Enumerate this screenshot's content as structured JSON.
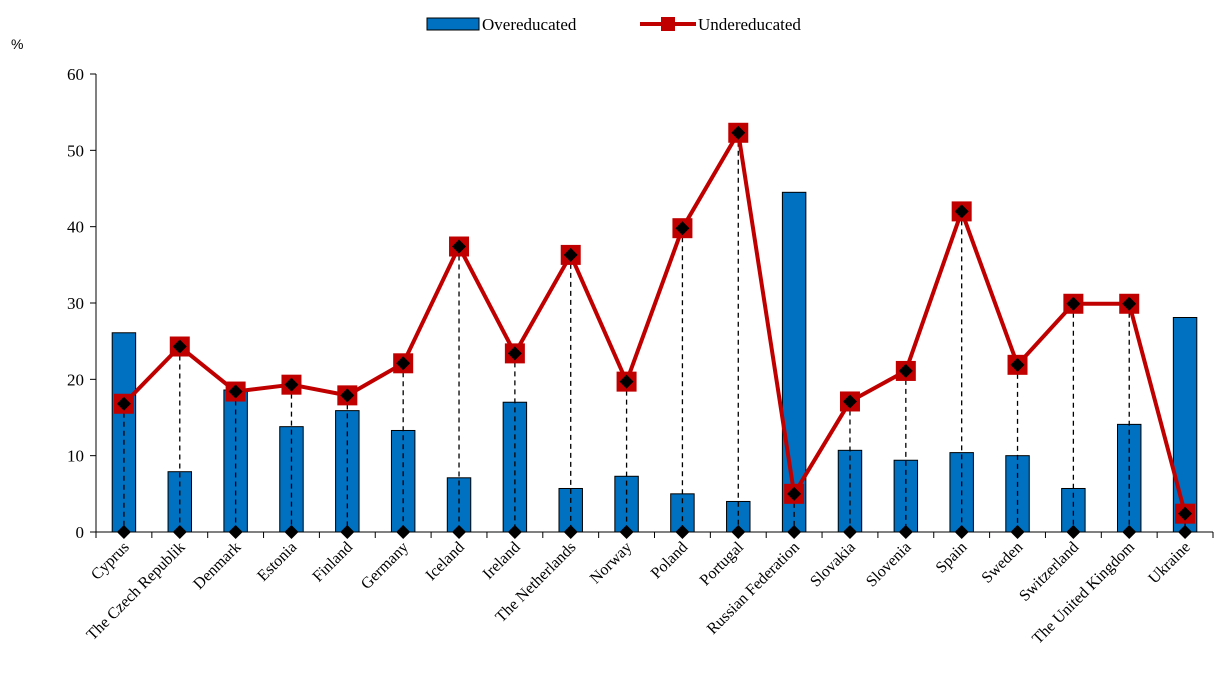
{
  "chart_data": {
    "type": "bar",
    "unit_label": "%",
    "categories": [
      "Cyprus",
      "The Czech Republik",
      "Denmark",
      "Estonia",
      "Finland",
      "Germany",
      "Iceland",
      "Ireland",
      "The Netherlands",
      "Norway",
      "Poland",
      "Portugal",
      "Russian Federation",
      "Slovakia",
      "Slovenia",
      "Spain",
      "Sweden",
      "Switzerland",
      "The United Kingdom",
      "Ukraine"
    ],
    "series": [
      {
        "name": "Overeducated",
        "kind": "bar",
        "color": "#0070C0",
        "values": [
          26.1,
          7.9,
          18.6,
          13.8,
          15.9,
          13.3,
          7.1,
          17.0,
          5.7,
          7.3,
          5.0,
          4.0,
          44.5,
          10.7,
          9.4,
          10.4,
          10.0,
          5.7,
          14.1,
          28.1
        ]
      },
      {
        "name": "Undereducated",
        "kind": "line",
        "color": "#C00000",
        "values": [
          16.8,
          24.3,
          18.4,
          19.3,
          17.9,
          22.1,
          37.4,
          23.4,
          36.3,
          19.7,
          39.8,
          52.3,
          5.0,
          17.1,
          21.1,
          42.0,
          21.9,
          29.9,
          29.9,
          2.4
        ]
      }
    ],
    "ylim": [
      0,
      60
    ],
    "yticks": [
      0,
      10,
      20,
      30,
      40,
      50,
      60
    ],
    "grid": false,
    "legend_position": "top-center"
  }
}
